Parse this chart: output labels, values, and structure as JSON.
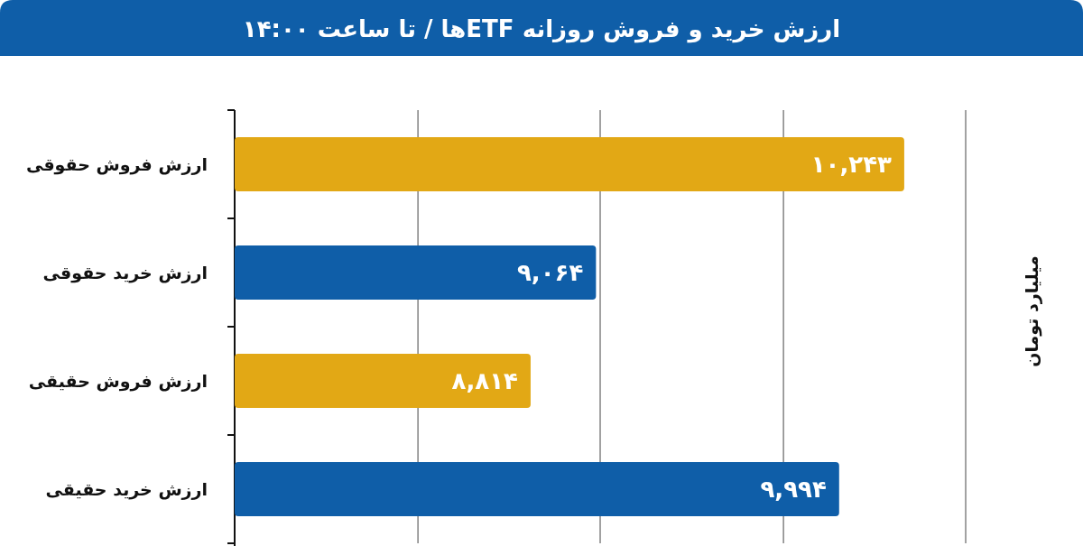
{
  "chart_data": {
    "type": "bar",
    "orientation": "horizontal",
    "title": "ارزش خرید و فروش روزانه ETFها / تا ساعت ۱۴:۰۰",
    "ylabel": "میلیارد تومان",
    "categories": [
      "ارزش فروش حقوقی",
      "ارزش خرید حقوقی",
      "ارزش فروش حقیقی",
      "ارزش خرید حقیقی"
    ],
    "values": [
      10243,
      9064,
      8814,
      9994
    ],
    "colors": [
      "#e2a815",
      "#0f5ea8",
      "#e2a815",
      "#0f5ea8"
    ],
    "value_labels": [
      "۱۰,۲۴۳",
      "۹,۰۶۴",
      "۸,۸۱۴",
      "۹,۹۹۴"
    ],
    "xlim": [
      7682,
      10478
    ],
    "xticks": [
      {
        "value": 7682,
        "label": null
      },
      {
        "value": 8383,
        "label": null
      },
      {
        "value": 9080,
        "label": null
      },
      {
        "value": 9781,
        "label": null
      },
      {
        "value": 10478,
        "label": null
      }
    ],
    "grid": "x",
    "tick_labels": "y"
  }
}
